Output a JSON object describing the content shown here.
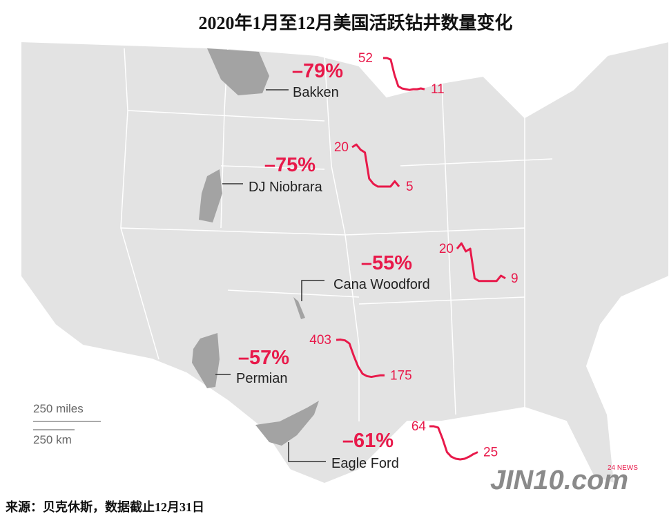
{
  "title": "2020年1月至12月美国活跃钻井数量变化",
  "source": "来源：贝克休斯，数据截止12月31日",
  "scale": {
    "miles": "250 miles",
    "km": "250 km"
  },
  "watermark": {
    "brand": "JIN10.com",
    "badge": "24 NEWS"
  },
  "basins": [
    {
      "name": "Bakken",
      "change": "–79%",
      "values": [
        52,
        52,
        50,
        30,
        15,
        12,
        11,
        10,
        11,
        11,
        12,
        11
      ]
    },
    {
      "name": "DJ Niobrara",
      "change": "–75%",
      "values": [
        20,
        21,
        19,
        18,
        8,
        6,
        5,
        5,
        5,
        5,
        7,
        5
      ]
    },
    {
      "name": "Cana Woodford",
      "change": "–55%",
      "values": [
        20,
        22,
        19,
        20,
        9,
        8,
        8,
        8,
        8,
        8,
        10,
        9
      ]
    },
    {
      "name": "Permian",
      "change": "–57%",
      "values": [
        403,
        405,
        400,
        380,
        300,
        230,
        185,
        170,
        165,
        170,
        175,
        175
      ]
    },
    {
      "name": "Eagle Ford",
      "change": "–61%",
      "values": [
        64,
        64,
        62,
        45,
        25,
        18,
        15,
        14,
        15,
        18,
        22,
        25
      ]
    }
  ]
}
